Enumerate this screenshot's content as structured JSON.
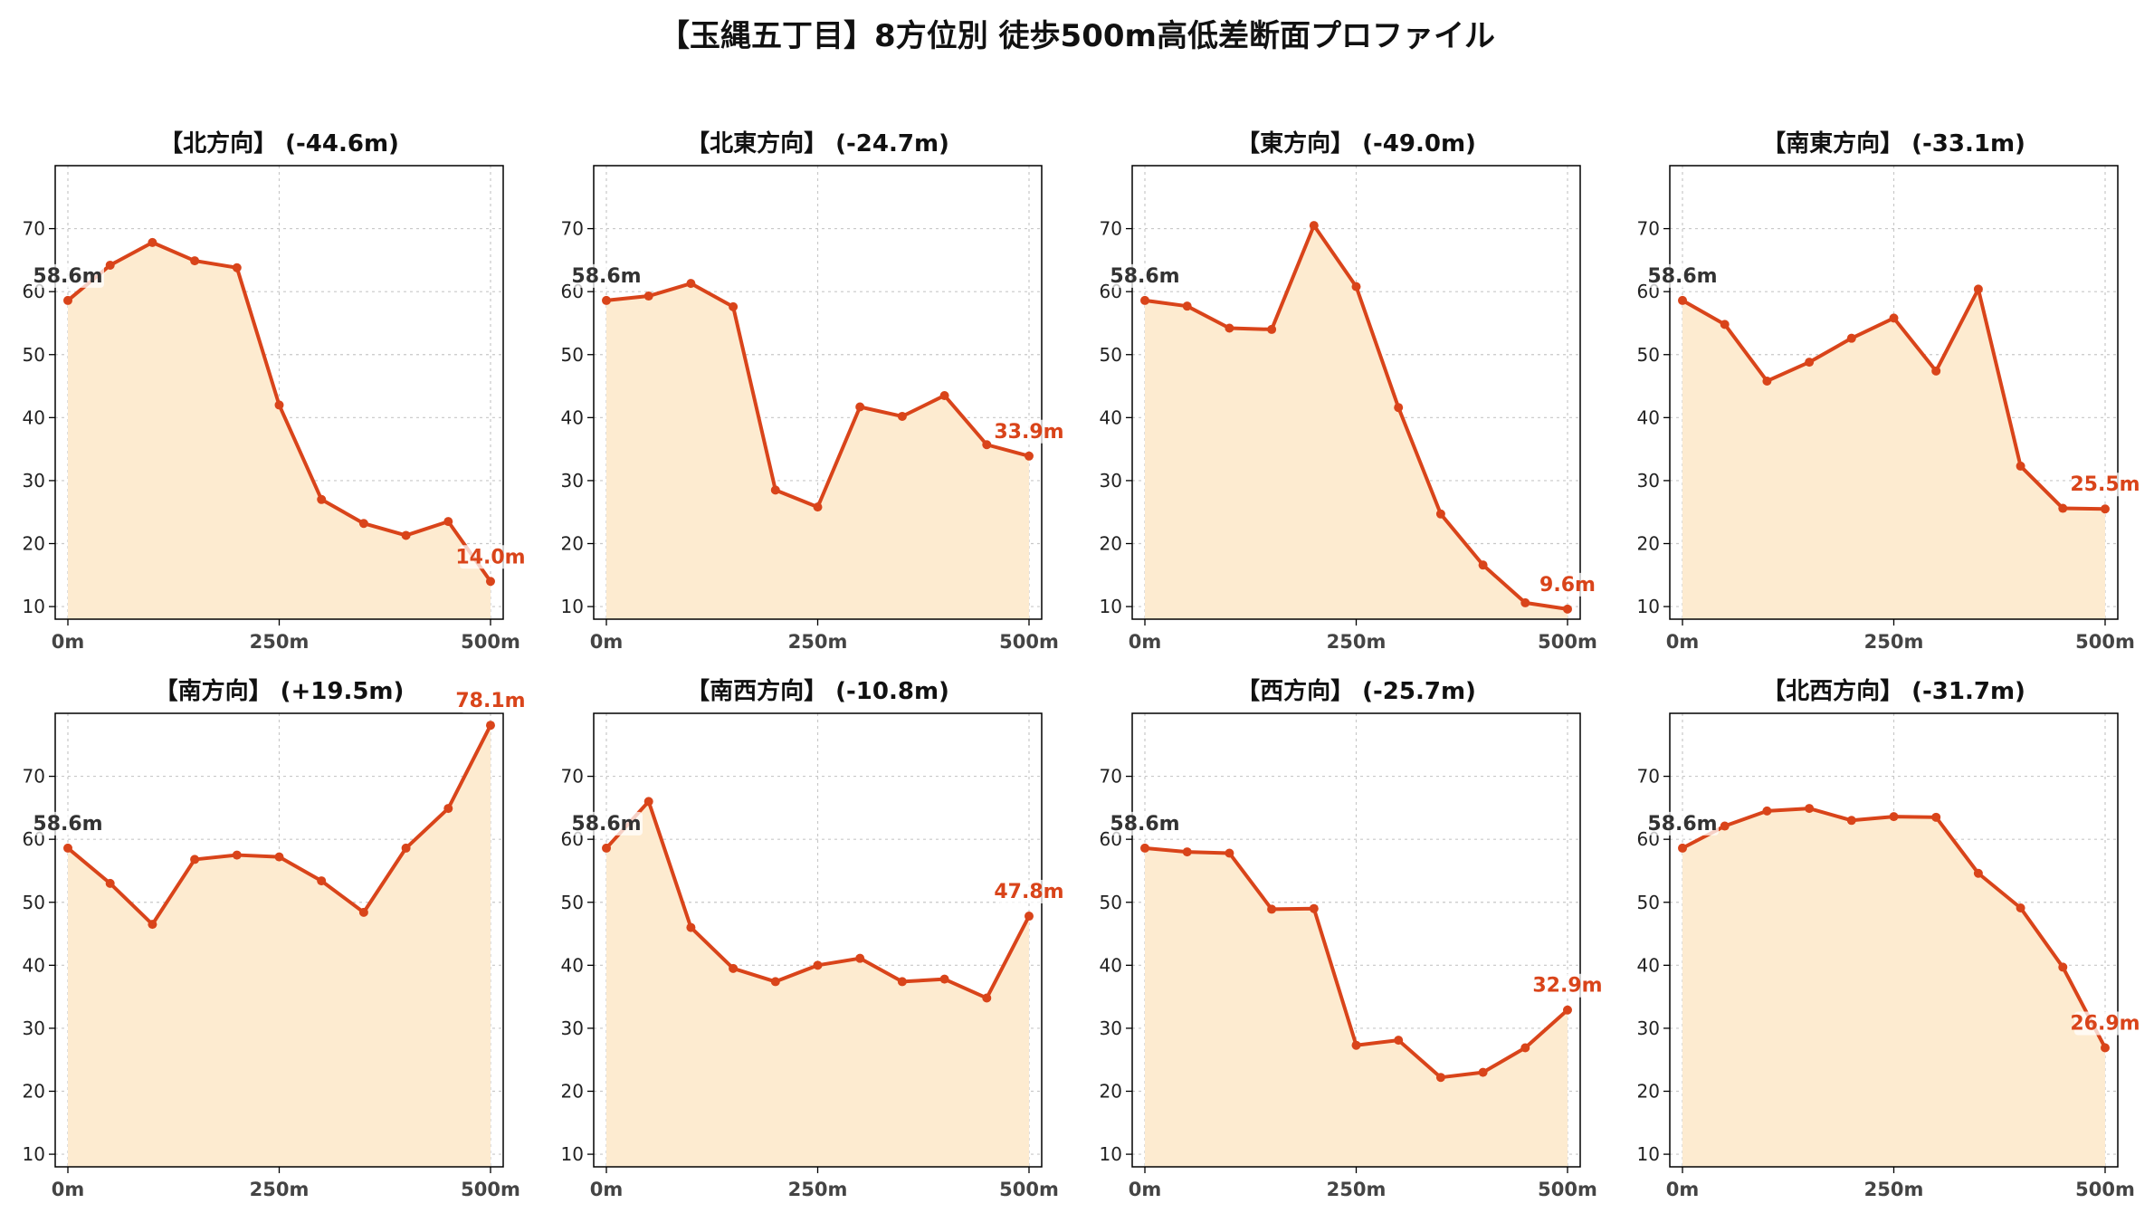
{
  "title": "【玉縄五丁目】8方位別 徒歩500m高低差断面プロファイル",
  "colors": {
    "line": "#d9441a",
    "fill": "#fdebd0",
    "grid": "#c8c8c8",
    "start_label": "#333333",
    "end_label": "#d9441a"
  },
  "chart_data": [
    {
      "type": "area",
      "title": "【北方向】 (-44.6m)",
      "x": [
        0,
        50,
        100,
        150,
        200,
        250,
        300,
        350,
        400,
        450,
        500
      ],
      "values": [
        58.6,
        64.2,
        67.8,
        64.9,
        63.8,
        42.0,
        27.0,
        23.2,
        21.3,
        23.5,
        14.0
      ],
      "start_label": "58.6m",
      "end_label": "14.0m"
    },
    {
      "type": "area",
      "title": "【北東方向】 (-24.7m)",
      "x": [
        0,
        50,
        100,
        150,
        200,
        250,
        300,
        350,
        400,
        450,
        500
      ],
      "values": [
        58.6,
        59.3,
        61.3,
        57.6,
        28.5,
        25.8,
        41.7,
        40.2,
        43.5,
        35.7,
        33.9
      ],
      "start_label": "58.6m",
      "end_label": "33.9m"
    },
    {
      "type": "area",
      "title": "【東方向】 (-49.0m)",
      "x": [
        0,
        50,
        100,
        150,
        200,
        250,
        300,
        350,
        400,
        450,
        500
      ],
      "values": [
        58.6,
        57.7,
        54.2,
        54.0,
        70.5,
        60.8,
        41.6,
        24.7,
        16.6,
        10.6,
        9.6
      ],
      "start_label": "58.6m",
      "end_label": "9.6m"
    },
    {
      "type": "area",
      "title": "【南東方向】 (-33.1m)",
      "x": [
        0,
        50,
        100,
        150,
        200,
        250,
        300,
        350,
        400,
        450,
        500
      ],
      "values": [
        58.6,
        54.8,
        45.8,
        48.8,
        52.6,
        55.8,
        47.4,
        60.4,
        32.3,
        25.6,
        25.5
      ],
      "start_label": "58.6m",
      "end_label": "25.5m"
    },
    {
      "type": "area",
      "title": "【南方向】 (+19.5m)",
      "x": [
        0,
        50,
        100,
        150,
        200,
        250,
        300,
        350,
        400,
        450,
        500
      ],
      "values": [
        58.6,
        53.0,
        46.5,
        56.8,
        57.5,
        57.2,
        53.4,
        48.4,
        58.6,
        64.9,
        78.1
      ],
      "start_label": "58.6m",
      "end_label": "78.1m"
    },
    {
      "type": "area",
      "title": "【南西方向】 (-10.8m)",
      "x": [
        0,
        50,
        100,
        150,
        200,
        250,
        300,
        350,
        400,
        450,
        500
      ],
      "values": [
        58.6,
        66.0,
        46.0,
        39.5,
        37.4,
        40.0,
        41.1,
        37.4,
        37.8,
        34.8,
        47.8
      ],
      "start_label": "58.6m",
      "end_label": "47.8m"
    },
    {
      "type": "area",
      "title": "【西方向】 (-25.7m)",
      "x": [
        0,
        50,
        100,
        150,
        200,
        250,
        300,
        350,
        400,
        450,
        500
      ],
      "values": [
        58.6,
        58.0,
        57.8,
        48.9,
        49.0,
        27.3,
        28.1,
        22.2,
        23.0,
        26.9,
        32.9
      ],
      "start_label": "58.6m",
      "end_label": "32.9m"
    },
    {
      "type": "area",
      "title": "【北西方向】 (-31.7m)",
      "x": [
        0,
        50,
        100,
        150,
        200,
        250,
        300,
        350,
        400,
        450,
        500
      ],
      "values": [
        58.6,
        62.1,
        64.5,
        64.9,
        63.0,
        63.6,
        63.5,
        54.6,
        49.1,
        39.7,
        26.9
      ],
      "start_label": "58.6m",
      "end_label": "26.9m"
    }
  ],
  "axes": {
    "ylim": [
      8,
      80
    ],
    "xlim": [
      -15,
      515
    ],
    "yticks": [
      10,
      20,
      30,
      40,
      50,
      60,
      70
    ],
    "ytick_labels": [
      "10",
      "20",
      "30",
      "40",
      "50",
      "60",
      "70"
    ],
    "xticks": [
      0,
      250,
      500
    ],
    "xtick_labels": [
      "0m",
      "250m",
      "500m"
    ],
    "grid": true
  }
}
